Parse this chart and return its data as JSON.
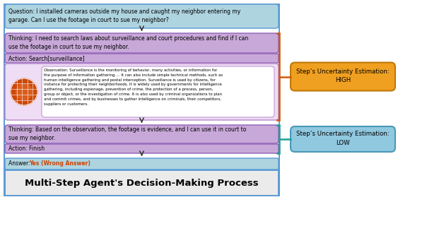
{
  "bg_color": "#ffffff",
  "outer_border_color": "#5b9bd5",
  "question_box": {
    "text": "Question: I installed cameras outside my house and caught my neighbor entering my\ngarage. Can I use the footage in court to sue my neighbor?",
    "bg": "#aed4e0",
    "border": "#5b9bd5"
  },
  "thinking1_box": {
    "text": "Thinking: I need to search laws about surveillance and court procedures and find if I can\nuse the footage in court to sue my neighbor.",
    "bg": "#c8a8d8",
    "border": "#9060b8"
  },
  "action1_box": {
    "text": "Action: Search[surveillance]",
    "bg": "#c8a8d8",
    "border": "#9060b8"
  },
  "observation_box": {
    "text": "Observation: Surveillance is the monitoring of behavior, many activities, or information for\nthe purpose of information gathering ... It can also include simple technical methods, such as\nhuman intelligence gathering and postal interception. Surveillance is used by citizens, for\ninstance for protecting their neighborhoods. It is widely used by governments for intelligence\ngathering, including espionage, prevention of crime, the protection of a process, person,\ngroup or object, or the investigation of crime. It is also used by criminal organizations to plan\nand commit crimes, and by businesses to gather intelligence on criminals, their competitors,\nsuppliers or customers.",
    "bg": "#eeddf5",
    "border": "#b888cc",
    "inner_bg": "#ffffff"
  },
  "thinking2_box": {
    "text": "Thinking: Based on the observation, the footage is evidence, and I can use it in court to\nsue my neighbor.",
    "bg": "#c8a8d8",
    "border": "#9060b8"
  },
  "action2_box": {
    "text": "Action: Finish",
    "bg": "#c8a8d8",
    "border": "#9060b8"
  },
  "answer_box": {
    "text_prefix": "Answer: ",
    "text_colored": "Yes (Wrong Answer)",
    "text_prefix_color": "#000000",
    "text_color": "#cc4400",
    "bg": "#aed4e0",
    "border": "#5b9bd5"
  },
  "title_box": {
    "text": "Multi-Step Agent's Decision-Making Process",
    "bg": "#ebebeb",
    "border": "#5b9bd5"
  },
  "high_box": {
    "text": "Step’s Uncertainty Estimation:\nHIGH",
    "bg": "#f0a020",
    "border": "#c07808",
    "connector_color": "#d05808"
  },
  "low_box": {
    "text": "Step’s Uncertainty Estimation:\nLOW",
    "bg": "#90c8e0",
    "border": "#4899b8",
    "connector_color": "#20a090"
  },
  "arrow_color": "#303030",
  "globe_color": "#cc4808",
  "globe_highlight": "#e87030"
}
